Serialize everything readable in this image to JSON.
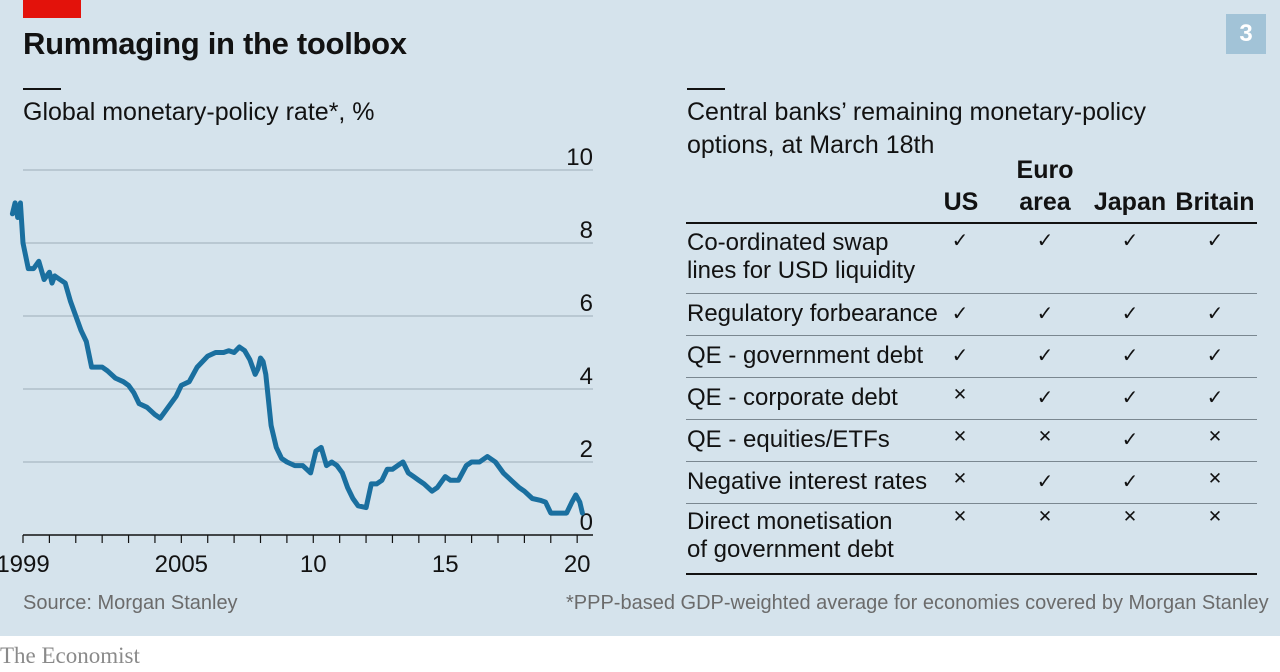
{
  "header": {
    "title": "Rummaging in the toolbox",
    "chart_number": "3",
    "accent_color": "#e3120b"
  },
  "left": {
    "subtitle": "Global monetary-policy rate*, %",
    "source": "Source: Morgan Stanley"
  },
  "right": {
    "subtitle_line1": "Central banks’ remaining monetary-policy",
    "subtitle_line2": "options, at March 18th",
    "columns": [
      {
        "line1": "",
        "line2": "US"
      },
      {
        "line1": "Euro",
        "line2": "area"
      },
      {
        "line1": "",
        "line2": "Japan"
      },
      {
        "line1": "",
        "line2": "Britain"
      }
    ],
    "rows": [
      {
        "line1": "Co-ordinated swap",
        "line2": "lines for USD liquidity",
        "marks": [
          "yes",
          "yes",
          "yes",
          "yes"
        ]
      },
      {
        "line1": "Regulatory forbearance",
        "line2": "",
        "marks": [
          "yes",
          "yes",
          "yes",
          "yes"
        ]
      },
      {
        "line1": "QE - government debt",
        "line2": "",
        "marks": [
          "yes",
          "yes",
          "yes",
          "yes"
        ]
      },
      {
        "line1": "QE - corporate debt",
        "line2": "",
        "marks": [
          "no",
          "yes",
          "yes",
          "yes"
        ]
      },
      {
        "line1": "QE - equities/ETFs",
        "line2": "",
        "marks": [
          "no",
          "no",
          "yes",
          "no"
        ]
      },
      {
        "line1": "Negative interest rates",
        "line2": "",
        "marks": [
          "no",
          "yes",
          "yes",
          "no"
        ]
      },
      {
        "line1": "Direct monetisation",
        "line2": "of government debt",
        "marks": [
          "no",
          "no",
          "no",
          "no"
        ]
      }
    ],
    "footnote": "*PPP-based GDP-weighted average for economies covered by Morgan Stanley",
    "yes_symbol": "✓",
    "no_symbol": "✕"
  },
  "footer": {
    "brand": "The Economist"
  },
  "chart_data": {
    "type": "line",
    "title": "Global monetary-policy rate*, %",
    "xlabel": "",
    "ylabel": "",
    "ylim": [
      0,
      10
    ],
    "xlim": [
      1999,
      2020.6
    ],
    "y_ticks": [
      "0",
      "2",
      "4",
      "6",
      "8",
      "10"
    ],
    "x_ticks": [
      "1999",
      "2005",
      "10",
      "15",
      "20"
    ],
    "x_tick_values": [
      1999,
      2005,
      2010,
      2015,
      2020
    ],
    "grid": "horizontal",
    "line_color": "#1a6f9f",
    "series": [
      {
        "x": [
          1998.6,
          1998.7,
          1998.8,
          1998.9,
          1999.0,
          1999.2,
          1999.4,
          1999.6,
          1999.8,
          2000.0,
          2000.1,
          2000.2,
          2000.4,
          2000.6,
          2000.8,
          2001.0,
          2001.2,
          2001.4,
          2001.6,
          2001.8,
          2002.0,
          2002.2,
          2002.5,
          2002.8,
          2003.0,
          2003.2,
          2003.4,
          2003.7,
          2004.0,
          2004.2,
          2004.5,
          2004.8,
          2005.0,
          2005.3,
          2005.6,
          2006.0,
          2006.3,
          2006.6,
          2006.8,
          2007.0,
          2007.2,
          2007.4,
          2007.6,
          2007.8,
          2007.9,
          2008.0,
          2008.1,
          2008.2,
          2008.4,
          2008.6,
          2008.8,
          2009.0,
          2009.3,
          2009.6,
          2009.9,
          2010.1,
          2010.3,
          2010.5,
          2010.7,
          2010.9,
          2011.0,
          2011.1,
          2011.3,
          2011.5,
          2011.7,
          2012.0,
          2012.2,
          2012.4,
          2012.6,
          2012.8,
          2013.0,
          2013.2,
          2013.4,
          2013.6,
          2013.8,
          2014.0,
          2014.2,
          2014.5,
          2014.7,
          2015.0,
          2015.2,
          2015.5,
          2015.8,
          2016.0,
          2016.3,
          2016.6,
          2016.9,
          2017.2,
          2017.5,
          2017.8,
          2018.0,
          2018.3,
          2018.6,
          2018.8,
          2019.0,
          2019.2,
          2019.4,
          2019.6,
          2019.8,
          2019.95,
          2020.1,
          2020.2
        ],
        "y": [
          8.8,
          9.1,
          8.7,
          9.1,
          8.0,
          7.3,
          7.3,
          7.5,
          7.0,
          7.2,
          6.9,
          7.1,
          7.0,
          6.9,
          6.4,
          6.0,
          5.6,
          5.3,
          4.6,
          4.6,
          4.6,
          4.5,
          4.3,
          4.2,
          4.1,
          3.9,
          3.6,
          3.5,
          3.3,
          3.2,
          3.5,
          3.8,
          4.1,
          4.2,
          4.6,
          4.9,
          5.0,
          5.0,
          5.05,
          5.0,
          5.15,
          5.05,
          4.8,
          4.4,
          4.55,
          4.85,
          4.75,
          4.4,
          3.0,
          2.4,
          2.1,
          2.0,
          1.9,
          1.9,
          1.7,
          2.3,
          2.4,
          1.9,
          2.0,
          1.9,
          1.8,
          1.7,
          1.3,
          1.0,
          0.8,
          0.75,
          1.4,
          1.4,
          1.5,
          1.8,
          1.8,
          1.9,
          2.0,
          1.7,
          1.6,
          1.5,
          1.4,
          1.2,
          1.3,
          1.6,
          1.5,
          1.5,
          1.9,
          2.0,
          2.0,
          2.15,
          2.0,
          1.7,
          1.5,
          1.3,
          1.2,
          1.0,
          0.95,
          0.9,
          0.6,
          0.6,
          0.6,
          0.6,
          0.9,
          1.1,
          0.9,
          0.6
        ]
      }
    ]
  }
}
